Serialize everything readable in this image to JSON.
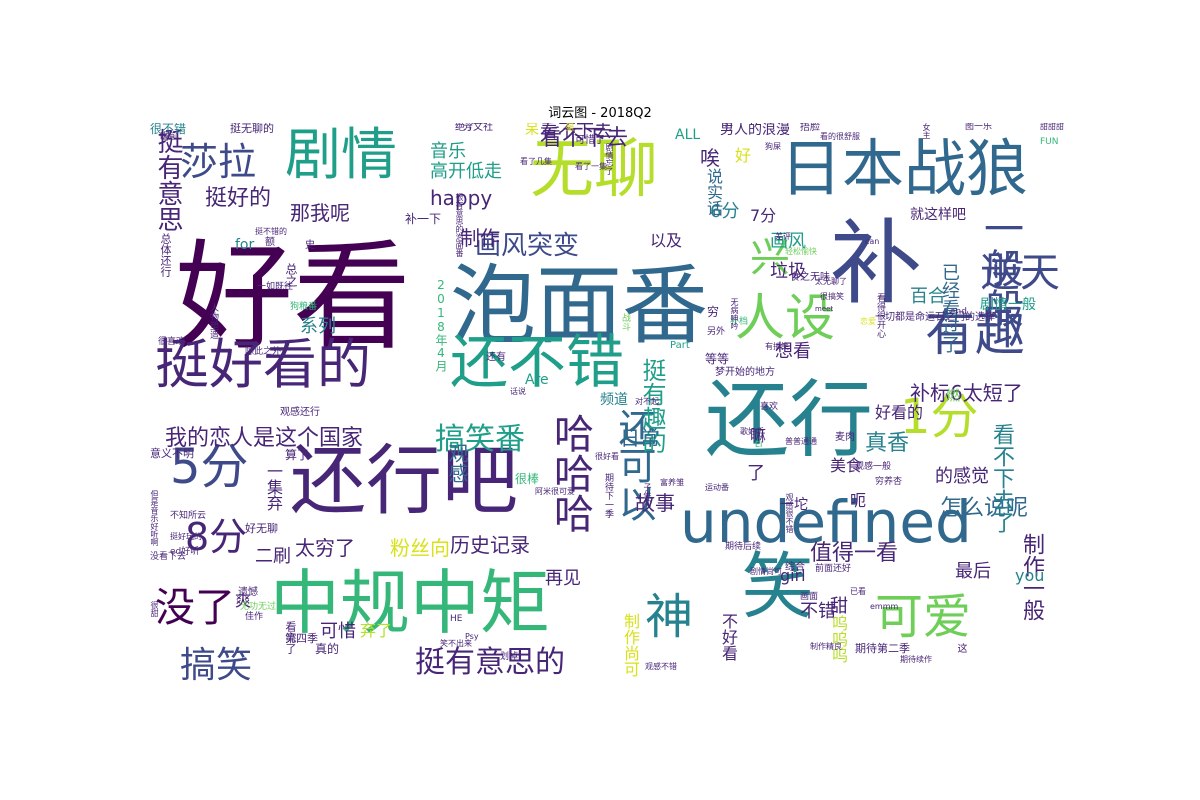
{
  "title": "词云图 - 2018Q2",
  "colors": {
    "dark_purple": "#440154",
    "purple": "#482677",
    "indigo": "#3e4a89",
    "blue": "#31688e",
    "teal": "#26828e",
    "green_teal": "#1f9e89",
    "green": "#35b779",
    "lime": "#6ece58",
    "yellow_green": "#b5de2b",
    "yellow": "#d8e219"
  },
  "words": [
    {
      "text": "好看",
      "size": 118,
      "color": "dark_purple"
    },
    {
      "text": "泡面番",
      "size": 86,
      "color": "blue"
    },
    {
      "text": "补",
      "size": 92,
      "color": "indigo"
    },
    {
      "text": "还行",
      "size": 84,
      "color": "teal"
    },
    {
      "text": "还行吧",
      "size": 76,
      "color": "purple"
    },
    {
      "text": "中规中矩",
      "size": 70,
      "color": "green"
    },
    {
      "text": "无聊",
      "size": 64,
      "color": "yellow_green"
    },
    {
      "text": "日本战狼",
      "size": 62,
      "color": "blue"
    },
    {
      "text": "剧情",
      "size": 56,
      "color": "green_teal"
    },
    {
      "text": "undefined",
      "size": 58,
      "color": "blue"
    },
    {
      "text": "还不错",
      "size": 58,
      "color": "green_teal"
    },
    {
      "text": "挺好看的",
      "size": 54,
      "color": "purple"
    },
    {
      "text": "笑",
      "size": 72,
      "color": "teal"
    },
    {
      "text": "人设",
      "size": 50,
      "color": "lime"
    },
    {
      "text": "有趣",
      "size": 50,
      "color": "indigo"
    },
    {
      "text": "5分",
      "size": 48,
      "color": "indigo"
    },
    {
      "text": "1分",
      "size": 48,
      "color": "yellow_green"
    },
    {
      "text": "可爱",
      "size": 48,
      "color": "lime"
    },
    {
      "text": "神",
      "size": 48,
      "color": "teal"
    },
    {
      "text": "一般般",
      "size": 40,
      "color": "indigo"
    },
    {
      "text": "逆天",
      "size": 40,
      "color": "indigo"
    },
    {
      "text": "兴",
      "size": 40,
      "color": "lime"
    },
    {
      "text": "没了",
      "size": 40,
      "color": "dark_purple"
    },
    {
      "text": "8分",
      "size": 38,
      "color": "purple"
    },
    {
      "text": "莎拉",
      "size": 38,
      "color": "indigo"
    },
    {
      "text": "哈哈哈",
      "size": 40,
      "color": "purple"
    },
    {
      "text": "还可以",
      "size": 38,
      "color": "blue"
    },
    {
      "text": "搞笑",
      "size": 36,
      "color": "indigo"
    },
    {
      "text": "挺有意思的",
      "size": 30,
      "color": "purple"
    },
    {
      "text": "搞笑番",
      "size": 30,
      "color": "green_teal"
    },
    {
      "text": "挺有意思",
      "size": 26,
      "color": "purple"
    },
    {
      "text": "挺有趣的",
      "size": 24,
      "color": "green_teal"
    },
    {
      "text": "画风突变",
      "size": 26,
      "color": "indigo"
    },
    {
      "text": "挺好的",
      "size": 22,
      "color": "purple"
    },
    {
      "text": "我的恋人是这个国家",
      "size": 22,
      "color": "purple"
    },
    {
      "text": "看不下去",
      "size": 22,
      "color": "purple"
    },
    {
      "text": "怎么说呢",
      "size": 22,
      "color": "blue"
    },
    {
      "text": "值得一看",
      "size": 22,
      "color": "purple"
    },
    {
      "text": "制作一般",
      "size": 22,
      "color": "purple"
    },
    {
      "text": "看不下去了",
      "size": 22,
      "color": "teal"
    },
    {
      "text": "补标6太短了",
      "size": 20,
      "color": "purple"
    },
    {
      "text": "真香",
      "size": 22,
      "color": "teal"
    },
    {
      "text": "历史记录",
      "size": 20,
      "color": "purple"
    },
    {
      "text": "粉丝向",
      "size": 20,
      "color": "yellow"
    },
    {
      "text": "太穷了",
      "size": 20,
      "color": "purple"
    },
    {
      "text": "故事",
      "size": 20,
      "color": "purple"
    },
    {
      "text": "日常",
      "size": 20,
      "color": "blue"
    },
    {
      "text": "观感",
      "size": 20,
      "color": "blue"
    },
    {
      "text": "制作",
      "size": 20,
      "color": "purple"
    },
    {
      "text": "happy",
      "size": 20,
      "color": "purple"
    },
    {
      "text": "那我呢",
      "size": 20,
      "color": "purple"
    },
    {
      "text": "高开低走",
      "size": 18,
      "color": "green_teal"
    },
    {
      "text": "音乐",
      "size": 18,
      "color": "green_teal"
    },
    {
      "text": "唉",
      "size": 20,
      "color": "purple"
    },
    {
      "text": "6分",
      "size": 18,
      "color": "teal"
    },
    {
      "text": "7分",
      "size": 16,
      "color": "purple"
    },
    {
      "text": "画风",
      "size": 18,
      "color": "green_teal"
    },
    {
      "text": "以及",
      "size": 16,
      "color": "purple"
    },
    {
      "text": "垃圾",
      "size": 18,
      "color": "purple"
    },
    {
      "text": "百合",
      "size": 18,
      "color": "teal"
    },
    {
      "text": "已经看过了",
      "size": 18,
      "color": "blue"
    },
    {
      "text": "想看",
      "size": 18,
      "color": "purple"
    },
    {
      "text": "好看的",
      "size": 16,
      "color": "purple"
    },
    {
      "text": "的感觉",
      "size": 18,
      "color": "purple"
    },
    {
      "text": "美食",
      "size": 16,
      "color": "purple"
    },
    {
      "text": "最后",
      "size": 18,
      "color": "purple"
    },
    {
      "text": "甜",
      "size": 18,
      "color": "purple"
    },
    {
      "text": "不错",
      "size": 18,
      "color": "purple"
    },
    {
      "text": "呜呜呜",
      "size": 16,
      "color": "yellow_green"
    },
    {
      "text": "girl",
      "size": 16,
      "color": "purple"
    },
    {
      "text": "再见",
      "size": 18,
      "color": "purple"
    },
    {
      "text": "二刷",
      "size": 18,
      "color": "purple"
    },
    {
      "text": "系列",
      "size": 18,
      "color": "teal"
    },
    {
      "text": "可惜",
      "size": 18,
      "color": "purple"
    },
    {
      "text": "弃了",
      "size": 16,
      "color": "yellow_green"
    },
    {
      "text": "一集弃",
      "size": 16,
      "color": "purple"
    },
    {
      "text": "说实话",
      "size": 16,
      "color": "blue"
    },
    {
      "text": "好",
      "size": 16,
      "color": "yellow"
    },
    {
      "text": "看不下去",
      "size": 18,
      "color": "purple"
    },
    {
      "text": "就这样吧",
      "size": 14,
      "color": "purple"
    },
    {
      "text": "剧情一般",
      "size": 14,
      "color": "green_teal"
    },
    {
      "text": "男人的浪漫",
      "size": 14,
      "color": "purple"
    },
    {
      "text": "制作尚可",
      "size": 16,
      "color": "yellow"
    },
    {
      "text": "不好看",
      "size": 16,
      "color": "purple"
    },
    {
      "text": "频道",
      "size": 14,
      "color": "teal"
    },
    {
      "text": "you",
      "size": 16,
      "color": "teal"
    },
    {
      "text": "ALL",
      "size": 14,
      "color": "green_teal"
    },
    {
      "text": "for",
      "size": 14,
      "color": "teal"
    },
    {
      "text": "Are",
      "size": 14,
      "color": "green_teal"
    },
    {
      "text": "爽",
      "size": 16,
      "color": "purple"
    },
    {
      "text": "很不错",
      "size": 12,
      "color": "teal"
    },
    {
      "text": "挺无聊的",
      "size": 11,
      "color": "purple"
    },
    {
      "text": "总体还行",
      "size": 11,
      "color": "purple"
    },
    {
      "text": "2018年4月",
      "size": 12,
      "color": "green"
    },
    {
      "text": "意义不明",
      "size": 11,
      "color": "purple"
    },
    {
      "text": "等等",
      "size": 12,
      "color": "purple"
    },
    {
      "text": "燃",
      "size": 14,
      "color": "lime"
    },
    {
      "text": "嘛",
      "size": 16,
      "color": "purple"
    },
    {
      "text": "一坨",
      "size": 14,
      "color": "purple"
    },
    {
      "text": "呃",
      "size": 16,
      "color": "purple"
    },
    {
      "text": "穷",
      "size": 12,
      "color": "purple"
    },
    {
      "text": "补一下",
      "size": 12,
      "color": "purple"
    },
    {
      "text": "可惜了",
      "size": 10,
      "color": "purple"
    },
    {
      "text": "绝了",
      "size": 10,
      "color": "purple"
    },
    {
      "text": "芳文社",
      "size": 10,
      "color": "purple"
    },
    {
      "text": "剧情忘了",
      "size": 8,
      "color": "purple"
    },
    {
      "text": "看了几集",
      "size": 8,
      "color": "purple"
    },
    {
      "text": "看了一集",
      "size": 8,
      "color": "purple"
    },
    {
      "text": "狗屎",
      "size": 8,
      "color": "purple"
    },
    {
      "text": "差评",
      "size": 8,
      "color": "purple"
    },
    {
      "text": "轻松愉快",
      "size": 8,
      "color": "lime"
    },
    {
      "text": "捂脸",
      "size": 10,
      "color": "purple"
    },
    {
      "text": "看的很舒服",
      "size": 8,
      "color": "purple"
    },
    {
      "text": "很有意思的泡面番",
      "size": 8,
      "color": "purple"
    },
    {
      "text": "挺不错的",
      "size": 8,
      "color": "purple"
    },
    {
      "text": "额",
      "size": 10,
      "color": "purple"
    },
    {
      "text": "史",
      "size": 10,
      "color": "purple"
    },
    {
      "text": "总之",
      "size": 12,
      "color": "purple"
    },
    {
      "text": "一如既往",
      "size": 9,
      "color": "purple"
    },
    {
      "text": "狗粮番",
      "size": 9,
      "color": "green"
    },
    {
      "text": "人物塑造",
      "size": 9,
      "color": "purple"
    },
    {
      "text": "除此之外",
      "size": 9,
      "color": "purple"
    },
    {
      "text": "很喜欢",
      "size": 9,
      "color": "purple"
    },
    {
      "text": "战斗",
      "size": 9,
      "color": "lime"
    },
    {
      "text": "还有",
      "size": 10,
      "color": "purple"
    },
    {
      "text": "Part",
      "size": 10,
      "color": "green_teal"
    },
    {
      "text": "另外",
      "size": 9,
      "color": "purple"
    },
    {
      "text": "补档",
      "size": 9,
      "color": "green"
    },
    {
      "text": "无病呻吟",
      "size": 8,
      "color": "purple"
    },
    {
      "text": "食之无味",
      "size": 10,
      "color": "purple"
    },
    {
      "text": "很搞笑",
      "size": 8,
      "color": "purple"
    },
    {
      "text": "有搞笑",
      "size": 8,
      "color": "purple"
    },
    {
      "text": "梦开始的地方",
      "size": 10,
      "color": "purple"
    },
    {
      "text": "话说",
      "size": 8,
      "color": "purple"
    },
    {
      "text": "对不起",
      "size": 8,
      "color": "purple"
    },
    {
      "text": "观感还行",
      "size": 10,
      "color": "purple"
    },
    {
      "text": "喜欢",
      "size": 9,
      "color": "purple"
    },
    {
      "text": "普普通通",
      "size": 8,
      "color": "purple"
    },
    {
      "text": "歌好听",
      "size": 8,
      "color": "purple"
    },
    {
      "text": "麦肉",
      "size": 10,
      "color": "purple"
    },
    {
      "text": "观感一般",
      "size": 9,
      "color": "purple"
    },
    {
      "text": "穷养杏",
      "size": 9,
      "color": "purple"
    },
    {
      "text": "算了",
      "size": 12,
      "color": "purple"
    },
    {
      "text": "好无聊",
      "size": 11,
      "color": "purple"
    },
    {
      "text": "很棒",
      "size": 12,
      "color": "green"
    },
    {
      "text": "期待下一季",
      "size": 9,
      "color": "purple"
    },
    {
      "text": "富养雏",
      "size": 8,
      "color": "purple"
    },
    {
      "text": "运动番",
      "size": 8,
      "color": "purple"
    },
    {
      "text": "观感很不错",
      "size": 8,
      "color": "purple"
    },
    {
      "text": "阿米很可爱",
      "size": 8,
      "color": "purple"
    },
    {
      "text": "很好看",
      "size": 8,
      "color": "purple"
    },
    {
      "text": "子供向",
      "size": 8,
      "color": "purple"
    },
    {
      "text": "期待后续",
      "size": 9,
      "color": "purple"
    },
    {
      "text": "剧情尚可",
      "size": 8,
      "color": "purple"
    },
    {
      "text": "综合",
      "size": 10,
      "color": "purple"
    },
    {
      "text": "前面还好",
      "size": 9,
      "color": "purple"
    },
    {
      "text": "已看",
      "size": 8,
      "color": "purple"
    },
    {
      "text": "emmm",
      "size": 8,
      "color": "purple"
    },
    {
      "text": "画面",
      "size": 9,
      "color": "purple"
    },
    {
      "text": "没看下去",
      "size": 9,
      "color": "purple"
    },
    {
      "text": "遗憾",
      "size": 10,
      "color": "purple"
    },
    {
      "text": "无功无过",
      "size": 9,
      "color": "lime"
    },
    {
      "text": "佳作",
      "size": 9,
      "color": "purple"
    },
    {
      "text": "看完了",
      "size": 11,
      "color": "purple"
    },
    {
      "text": "第四季",
      "size": 11,
      "color": "purple"
    },
    {
      "text": "真的",
      "size": 12,
      "color": "purple"
    },
    {
      "text": "HE",
      "size": 9,
      "color": "purple"
    },
    {
      "text": "Psy",
      "size": 8,
      "color": "purple"
    },
    {
      "text": "笑不出来",
      "size": 8,
      "color": "purple"
    },
    {
      "text": "划掉",
      "size": 9,
      "color": "purple"
    },
    {
      "text": "观感不错",
      "size": 8,
      "color": "purple"
    },
    {
      "text": "制作精良",
      "size": 8,
      "color": "purple"
    },
    {
      "text": "期待第二季",
      "size": 11,
      "color": "purple"
    },
    {
      "text": "期待续作",
      "size": 8,
      "color": "purple"
    },
    {
      "text": "这",
      "size": 10,
      "color": "purple"
    },
    {
      "text": "一切都是命运石之门的选择",
      "size": 10,
      "color": "purple"
    },
    {
      "text": "恋爱",
      "size": 8,
      "color": "yellow"
    },
    {
      "text": "end",
      "size": 9,
      "color": "purple"
    },
    {
      "text": "图一乐",
      "size": 9,
      "color": "purple"
    },
    {
      "text": "FUN",
      "size": 9,
      "color": "green"
    },
    {
      "text": "can",
      "size": 8,
      "color": "purple"
    },
    {
      "text": "没玩过游戏",
      "size": 8,
      "color": "lime"
    },
    {
      "text": "meet",
      "size": 7,
      "color": "purple"
    },
    {
      "text": "看得很开心",
      "size": 9,
      "color": "purple"
    },
    {
      "text": "很甜",
      "size": 8,
      "color": "purple"
    },
    {
      "text": "但是音乐好听啊",
      "size": 8,
      "color": "purple"
    },
    {
      "text": "不知所云",
      "size": 9,
      "color": "purple"
    },
    {
      "text": "挺好玩的",
      "size": 8,
      "color": "purple"
    },
    {
      "text": "ed好听",
      "size": 9,
      "color": "purple"
    },
    {
      "text": "太无聊了",
      "size": 8,
      "color": "purple"
    },
    {
      "text": "甜甜甜",
      "size": 8,
      "color": "purple"
    },
    {
      "text": "女主",
      "size": 8,
      "color": "purple"
    },
    {
      "text": "EI",
      "size": 8,
      "color": "green"
    },
    {
      "text": "了",
      "size": 18,
      "color": "purple"
    },
    {
      "text": "呆",
      "size": 14,
      "color": "yellow"
    },
    {
      "text": "星",
      "size": 10,
      "color": "yellow"
    },
    {
      "text": "行",
      "size": 8,
      "color": "purple"
    },
    {
      "text": "作画",
      "size": 8,
      "color": "purple"
    },
    {
      "text": "嗯",
      "size": 10,
      "color": "purple"
    }
  ]
}
